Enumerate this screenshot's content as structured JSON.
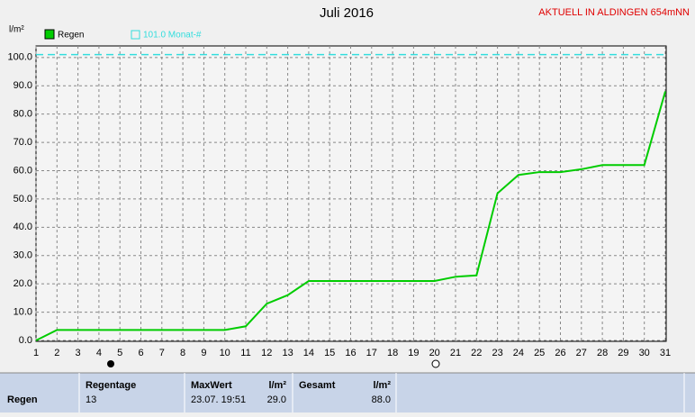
{
  "chart_data": {
    "type": "line",
    "title": "Juli 2016",
    "y_label": "l/m²",
    "x": [
      1,
      2,
      3,
      4,
      5,
      6,
      7,
      8,
      9,
      10,
      11,
      12,
      13,
      14,
      15,
      16,
      17,
      18,
      19,
      20,
      21,
      22,
      23,
      24,
      25,
      26,
      27,
      28,
      29,
      30,
      31
    ],
    "series": [
      {
        "name": "Regen",
        "color": "#00cc00",
        "values": [
          0,
          3.7,
          3.7,
          3.7,
          3.7,
          3.7,
          3.7,
          3.7,
          3.7,
          3.7,
          5,
          13,
          16,
          21,
          21,
          21,
          21,
          21,
          21,
          21,
          22.5,
          23,
          52,
          58.5,
          59.5,
          59.5,
          60.5,
          62,
          62,
          62,
          88
        ]
      }
    ],
    "reference": {
      "value": 101,
      "label": "101.0 Monat-#",
      "color": "#33dddd"
    },
    "xlim": [
      1,
      31
    ],
    "xticks": [
      1,
      2,
      3,
      4,
      5,
      6,
      7,
      8,
      9,
      10,
      11,
      12,
      13,
      14,
      15,
      16,
      17,
      18,
      19,
      20,
      21,
      22,
      23,
      24,
      25,
      26,
      27,
      28,
      29,
      30,
      31
    ],
    "ylim": [
      0,
      103
    ],
    "yticks": [
      {
        "value": 0,
        "label": "0.0"
      },
      {
        "value": 10,
        "label": "10.0"
      },
      {
        "value": 20,
        "label": "20.0"
      },
      {
        "value": 30,
        "label": "30.0"
      },
      {
        "value": 40,
        "label": "40.0"
      },
      {
        "value": 50,
        "label": "50.0"
      },
      {
        "value": 60,
        "label": "60.0"
      },
      {
        "value": 70,
        "label": "70.0"
      },
      {
        "value": 80,
        "label": "80.0"
      },
      {
        "value": 90,
        "label": "90.0"
      },
      {
        "value": 100,
        "label": "100.0"
      }
    ],
    "grid": true
  },
  "station": "AKTUELL IN ALDINGEN 654mNN",
  "table": {
    "row_label": "Regen",
    "regentage_header": "Regentage",
    "regentage": "13",
    "maxwert_header": "MaxWert",
    "maxwert_unit": "l/m²",
    "maxwert_date": "23.07.  19:51",
    "maxwert": "29.0",
    "gesamt_header": "Gesamt",
    "gesamt_unit": "l/m²",
    "gesamt": "88.0"
  }
}
